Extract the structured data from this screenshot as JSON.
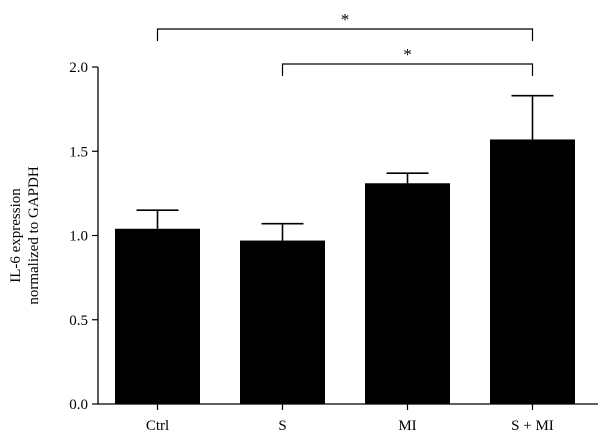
{
  "chart_data": {
    "type": "bar",
    "categories": [
      "Ctrl",
      "S",
      "MI",
      "S + MI"
    ],
    "values": [
      1.04,
      0.97,
      1.31,
      1.57
    ],
    "errors": [
      0.11,
      0.1,
      0.06,
      0.26
    ],
    "ylabel_lines": [
      "IL-6 expression",
      "normalized to GAPDH"
    ],
    "ylim": [
      0,
      2.0
    ],
    "yticks": [
      "0.0",
      "0.5",
      "1.0",
      "1.5",
      "2.0"
    ],
    "bar_color": "#000000",
    "significance": [
      {
        "from": "Ctrl",
        "to": "S + MI",
        "label": "*"
      },
      {
        "from": "S",
        "to": "S + MI",
        "label": "*"
      }
    ]
  }
}
